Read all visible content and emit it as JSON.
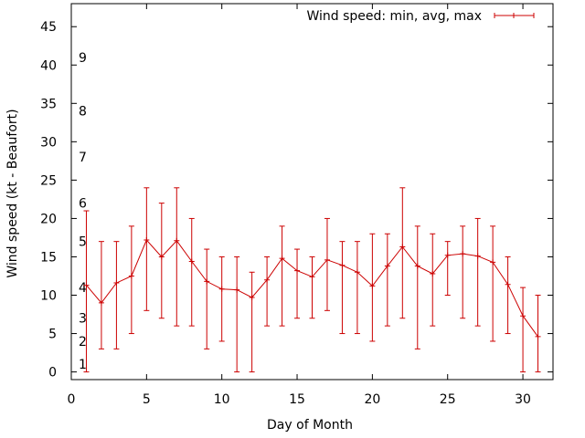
{
  "chart_data": {
    "type": "line",
    "title": "",
    "xlabel": "Day of Month",
    "ylabel": "Wind speed (kt - Beaufort)",
    "xlim": [
      0,
      32
    ],
    "ylim": [
      -1,
      48
    ],
    "x_ticks": [
      0,
      5,
      10,
      15,
      20,
      25,
      30
    ],
    "y_ticks": [
      0,
      5,
      10,
      15,
      20,
      25,
      30,
      35,
      40,
      45
    ],
    "grid": false,
    "legend_position": "top-right",
    "beaufort_labels": [
      {
        "label": "1",
        "value": 1
      },
      {
        "label": "2",
        "value": 4
      },
      {
        "label": "3",
        "value": 7
      },
      {
        "label": "4",
        "value": 11
      },
      {
        "label": "5",
        "value": 17
      },
      {
        "label": "6",
        "value": 22
      },
      {
        "label": "7",
        "value": 28
      },
      {
        "label": "8",
        "value": 34
      },
      {
        "label": "9",
        "value": 41
      }
    ],
    "series": [
      {
        "name": "Wind speed: min, avg, max",
        "color": "#cc0000",
        "x": [
          1,
          2,
          3,
          4,
          5,
          6,
          7,
          8,
          9,
          10,
          11,
          12,
          13,
          14,
          15,
          16,
          17,
          18,
          19,
          20,
          21,
          22,
          23,
          24,
          25,
          26,
          27,
          28,
          29,
          30,
          31
        ],
        "avg": [
          11.3,
          9.0,
          11.6,
          12.5,
          17.2,
          15.0,
          17.1,
          14.4,
          11.8,
          10.8,
          10.7,
          9.7,
          12.0,
          14.8,
          13.2,
          12.4,
          14.6,
          13.9,
          13.0,
          11.2,
          13.8,
          16.3,
          13.8,
          12.8,
          15.2,
          15.4,
          15.1,
          14.3,
          11.4,
          7.3,
          4.6
        ],
        "min": [
          0,
          3,
          3,
          5,
          8,
          7,
          6,
          6,
          3,
          4,
          0,
          0,
          6,
          6,
          7,
          7,
          8,
          5,
          5,
          4,
          6,
          7,
          3,
          6,
          10,
          7,
          6,
          4,
          5,
          0,
          0
        ],
        "max": [
          21,
          17,
          17,
          19,
          24,
          22,
          24,
          20,
          16,
          15,
          15,
          13,
          15,
          19,
          16,
          15,
          20,
          17,
          17,
          18,
          18,
          24,
          19,
          18,
          17,
          19,
          20,
          19,
          15,
          11,
          10
        ]
      }
    ]
  }
}
